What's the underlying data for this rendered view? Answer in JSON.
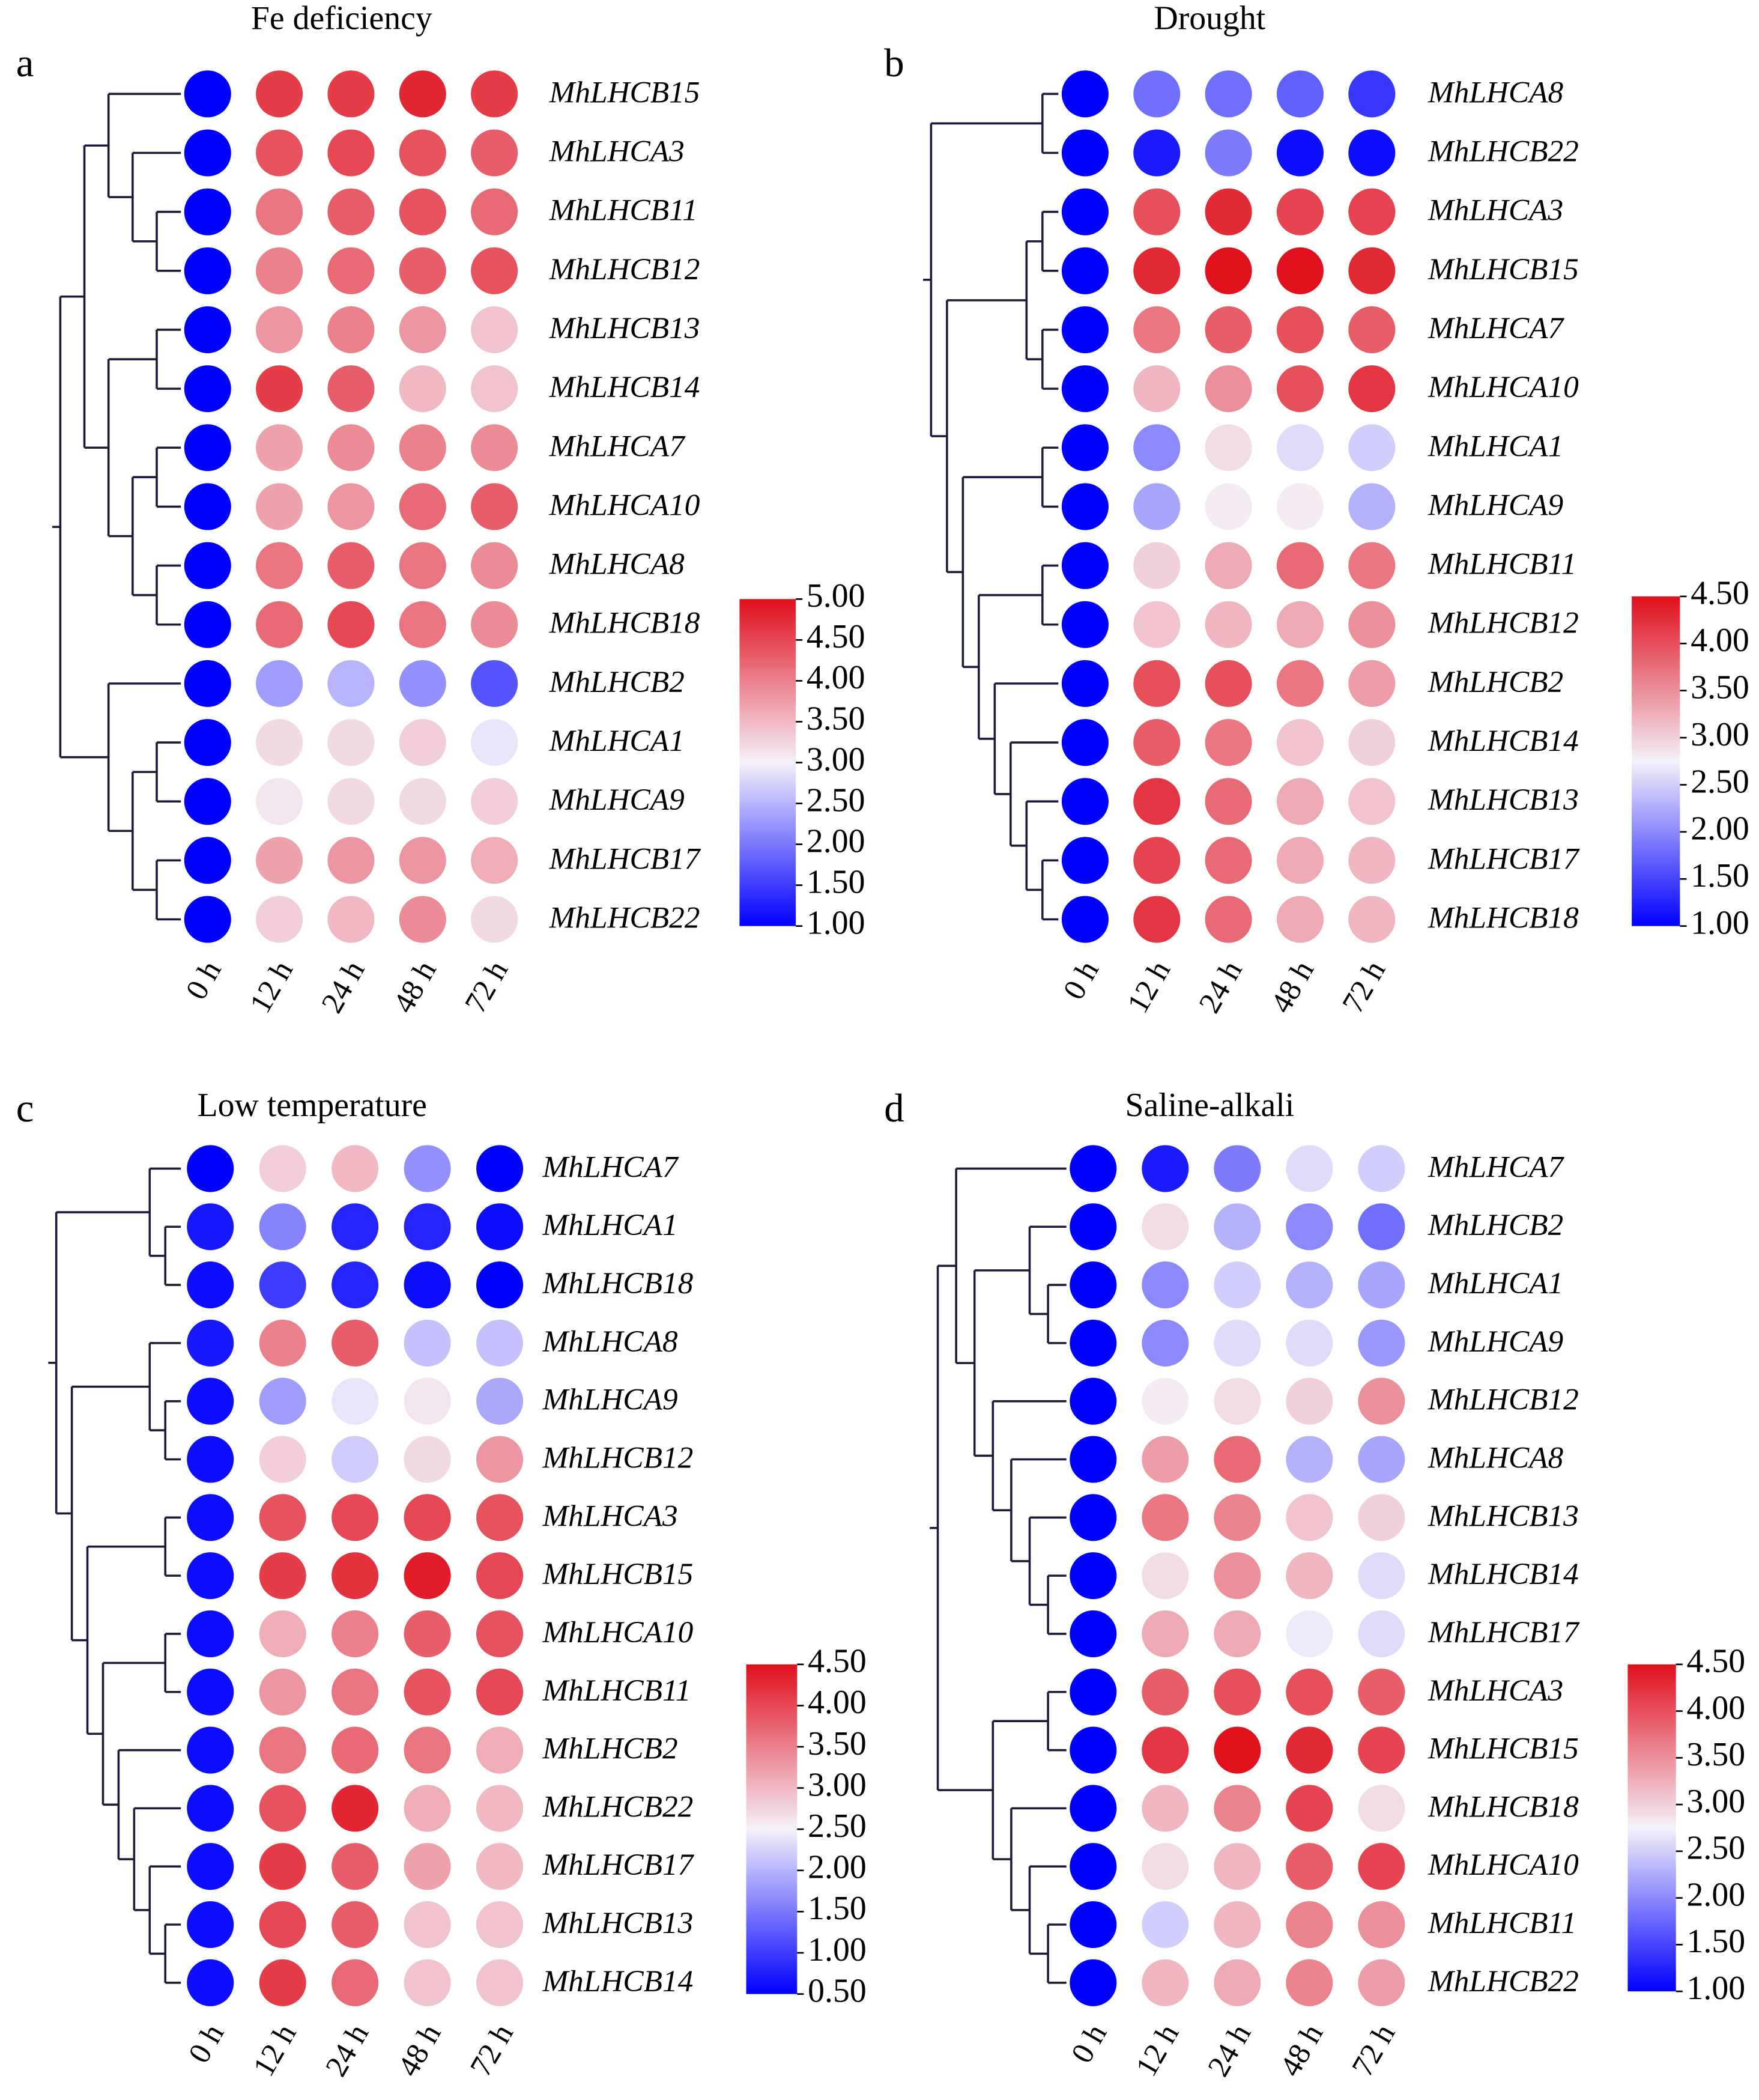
{
  "chart_data": [
    {
      "type": "heatmap",
      "panel_label": "a",
      "title": "Fe deficiency",
      "x": [
        "0 h",
        "12 h",
        "24 h",
        "48 h",
        "72 h"
      ],
      "y": [
        "MhLHCB15",
        "MhLHCA3",
        "MhLHCB11",
        "MhLHCB12",
        "MhLHCB13",
        "MhLHCB14",
        "MhLHCA7",
        "MhLHCA10",
        "MhLHCA8",
        "MhLHCB18",
        "MhLHCB2",
        "MhLHCA1",
        "MhLHCA9",
        "MhLHCB17",
        "MhLHCB22"
      ],
      "values": [
        [
          1,
          4.6,
          4.6,
          4.8,
          4.6
        ],
        [
          1,
          4.4,
          4.5,
          4.4,
          4.3
        ],
        [
          1,
          4.1,
          4.3,
          4.4,
          4.2
        ],
        [
          1,
          4.0,
          4.2,
          4.3,
          4.4
        ],
        [
          1,
          3.8,
          4.0,
          3.8,
          3.4
        ],
        [
          1,
          4.6,
          4.3,
          3.5,
          3.4
        ],
        [
          1,
          3.7,
          3.9,
          4.0,
          3.9
        ],
        [
          1,
          3.7,
          3.8,
          4.2,
          4.3
        ],
        [
          1,
          4.1,
          4.3,
          4.1,
          3.9
        ],
        [
          1,
          4.2,
          4.5,
          4.1,
          3.9
        ],
        [
          1,
          2.3,
          2.5,
          2.2,
          1.7
        ],
        [
          1,
          3.2,
          3.2,
          3.3,
          2.9
        ],
        [
          1,
          3.1,
          3.2,
          3.2,
          3.3
        ],
        [
          1,
          3.7,
          3.8,
          3.8,
          3.6
        ],
        [
          1,
          3.3,
          3.5,
          3.9,
          3.2
        ]
      ],
      "clim": [
        1,
        5
      ],
      "ticks": [
        {
          "value": 1,
          "label": "1.00"
        },
        {
          "value": 1.5,
          "label": "1.50"
        },
        {
          "value": 2,
          "label": "2.00"
        },
        {
          "value": 2.5,
          "label": "2.50"
        },
        {
          "value": 3,
          "label": "3.00"
        },
        {
          "value": 3.5,
          "label": "3.50"
        },
        {
          "value": 4,
          "label": "4.00"
        },
        {
          "value": 4.5,
          "label": "4.50"
        },
        {
          "value": 5,
          "label": "5.00"
        }
      ],
      "colorscale": [
        "#0000ff",
        "#f4f0fa",
        "#e0101c"
      ]
    },
    {
      "type": "heatmap",
      "panel_label": "b",
      "title": "Drought",
      "x": [
        "0 h",
        "12 h",
        "24 h",
        "48 h",
        "72 h"
      ],
      "y": [
        "MhLHCA8",
        "MhLHCB22",
        "MhLHCA3",
        "MhLHCB15",
        "MhLHCA7",
        "MhLHCA10",
        "MhLHCA1",
        "MhLHCA9",
        "MhLHCB11",
        "MhLHCB12",
        "MhLHCB2",
        "MhLHCB14",
        "MhLHCB13",
        "MhLHCB17",
        "MhLHCB18"
      ],
      "values": [
        [
          1,
          1.8,
          1.8,
          1.7,
          1.4
        ],
        [
          1,
          1.2,
          1.9,
          1.1,
          1.1
        ],
        [
          1,
          4.0,
          4.3,
          4.1,
          4.1
        ],
        [
          1,
          4.3,
          4.5,
          4.5,
          4.3
        ],
        [
          1,
          3.7,
          3.9,
          4.0,
          3.9
        ],
        [
          1,
          3.2,
          3.5,
          4.0,
          4.2
        ],
        [
          1,
          2.0,
          2.9,
          2.6,
          2.5
        ],
        [
          1,
          2.2,
          2.8,
          2.8,
          2.3
        ],
        [
          1,
          3.0,
          3.3,
          3.8,
          3.7
        ],
        [
          1,
          3.1,
          3.2,
          3.3,
          3.5
        ],
        [
          1,
          4.0,
          4.0,
          3.7,
          3.4
        ],
        [
          1,
          3.9,
          3.7,
          3.1,
          3.0
        ],
        [
          1,
          4.2,
          3.8,
          3.3,
          3.1
        ],
        [
          1,
          4.1,
          3.8,
          3.3,
          3.2
        ],
        [
          1,
          4.2,
          3.8,
          3.3,
          3.2
        ]
      ],
      "clim": [
        1,
        4.5
      ],
      "ticks": [
        {
          "value": 1,
          "label": "1.00"
        },
        {
          "value": 1.5,
          "label": "1.50"
        },
        {
          "value": 2,
          "label": "2.00"
        },
        {
          "value": 2.5,
          "label": "2.50"
        },
        {
          "value": 3,
          "label": "3.00"
        },
        {
          "value": 3.5,
          "label": "3.50"
        },
        {
          "value": 4,
          "label": "4.00"
        },
        {
          "value": 4.5,
          "label": "4.50"
        }
      ],
      "colorscale": [
        "#0000ff",
        "#f4f0fa",
        "#e0101c"
      ]
    },
    {
      "type": "heatmap",
      "panel_label": "c",
      "title": "Low temperature",
      "x": [
        "0 h",
        "12 h",
        "24 h",
        "48 h",
        "72 h"
      ],
      "y": [
        "MhLHCA7",
        "MhLHCA1",
        "MhLHCB18",
        "MhLHCA8",
        "MhLHCA9",
        "MhLHCB12",
        "MhLHCA3",
        "MhLHCB15",
        "MhLHCA10",
        "MhLHCB11",
        "MhLHCB2",
        "MhLHCB22",
        "MhLHCB17",
        "MhLHCB13",
        "MhLHCB14"
      ],
      "values": [
        [
          0.5,
          2.8,
          3.0,
          1.7,
          0.5
        ],
        [
          0.7,
          1.6,
          0.8,
          0.8,
          0.6
        ],
        [
          0.6,
          1.0,
          0.8,
          0.6,
          0.5
        ],
        [
          0.7,
          3.5,
          3.8,
          2.1,
          2.1
        ],
        [
          0.6,
          1.8,
          2.4,
          2.6,
          1.9
        ],
        [
          0.6,
          2.8,
          2.2,
          2.7,
          3.3
        ],
        [
          0.6,
          3.9,
          4.0,
          4.0,
          3.9
        ],
        [
          0.6,
          4.1,
          4.2,
          4.4,
          4.0
        ],
        [
          0.6,
          3.1,
          3.5,
          3.8,
          3.9
        ],
        [
          0.6,
          3.3,
          3.6,
          3.9,
          4.0
        ],
        [
          0.6,
          3.6,
          3.7,
          3.6,
          3.1
        ],
        [
          0.6,
          3.9,
          4.3,
          3.1,
          3.0
        ],
        [
          0.6,
          4.1,
          3.8,
          3.2,
          3.0
        ],
        [
          0.6,
          4.0,
          3.8,
          2.9,
          2.9
        ],
        [
          0.6,
          4.1,
          3.7,
          2.9,
          2.9
        ]
      ],
      "clim": [
        0.5,
        4.5
      ],
      "ticks": [
        {
          "value": 0.5,
          "label": "0.50"
        },
        {
          "value": 1,
          "label": "1.00"
        },
        {
          "value": 1.5,
          "label": "1.50"
        },
        {
          "value": 2,
          "label": "2.00"
        },
        {
          "value": 2.5,
          "label": "2.50"
        },
        {
          "value": 3,
          "label": "3.00"
        },
        {
          "value": 3.5,
          "label": "3.50"
        },
        {
          "value": 4,
          "label": "4.00"
        },
        {
          "value": 4.5,
          "label": "4.50"
        }
      ],
      "colorscale": [
        "#0000ff",
        "#f4f0fa",
        "#e0101c"
      ]
    },
    {
      "type": "heatmap",
      "panel_label": "d",
      "title": "Saline-alkali",
      "x": [
        "0 h",
        "12 h",
        "24 h",
        "48 h",
        "72 h"
      ],
      "y": [
        "MhLHCA7",
        "MhLHCB2",
        "MhLHCA1",
        "MhLHCA9",
        "MhLHCB12",
        "MhLHCA8",
        "MhLHCB13",
        "MhLHCB14",
        "MhLHCB17",
        "MhLHCA3",
        "MhLHCB15",
        "MhLHCB18",
        "MhLHCA10",
        "MhLHCB11",
        "MhLHCB22"
      ],
      "values": [
        [
          1,
          1.2,
          1.9,
          2.6,
          2.5
        ],
        [
          1,
          2.9,
          2.3,
          2.0,
          1.8
        ],
        [
          1,
          2.0,
          2.5,
          2.3,
          2.2
        ],
        [
          1,
          2.0,
          2.6,
          2.6,
          2.1
        ],
        [
          1,
          2.8,
          2.9,
          3.0,
          3.5
        ],
        [
          1,
          3.4,
          3.8,
          2.3,
          2.2
        ],
        [
          1,
          3.7,
          3.6,
          3.1,
          3.0
        ],
        [
          1,
          2.9,
          3.5,
          3.2,
          2.6
        ],
        [
          1,
          3.3,
          3.3,
          2.7,
          2.6
        ],
        [
          1,
          3.9,
          4.0,
          4.0,
          3.9
        ],
        [
          1,
          4.2,
          4.5,
          4.3,
          4.1
        ],
        [
          1,
          3.2,
          3.6,
          4.1,
          2.9
        ],
        [
          1,
          2.9,
          3.2,
          3.9,
          4.1
        ],
        [
          1,
          2.5,
          3.2,
          3.6,
          3.5
        ],
        [
          1,
          3.2,
          3.3,
          3.6,
          3.4
        ]
      ],
      "clim": [
        1,
        4.5
      ],
      "ticks": [
        {
          "value": 1,
          "label": "1.00"
        },
        {
          "value": 1.5,
          "label": "1.50"
        },
        {
          "value": 2,
          "label": "2.00"
        },
        {
          "value": 2.5,
          "label": "2.50"
        },
        {
          "value": 3,
          "label": "3.00"
        },
        {
          "value": 3.5,
          "label": "3.50"
        },
        {
          "value": 4,
          "label": "4.00"
        },
        {
          "value": 4.5,
          "label": "4.50"
        }
      ],
      "colorscale": [
        "#0000ff",
        "#f4f0fa",
        "#e0101c"
      ]
    }
  ]
}
